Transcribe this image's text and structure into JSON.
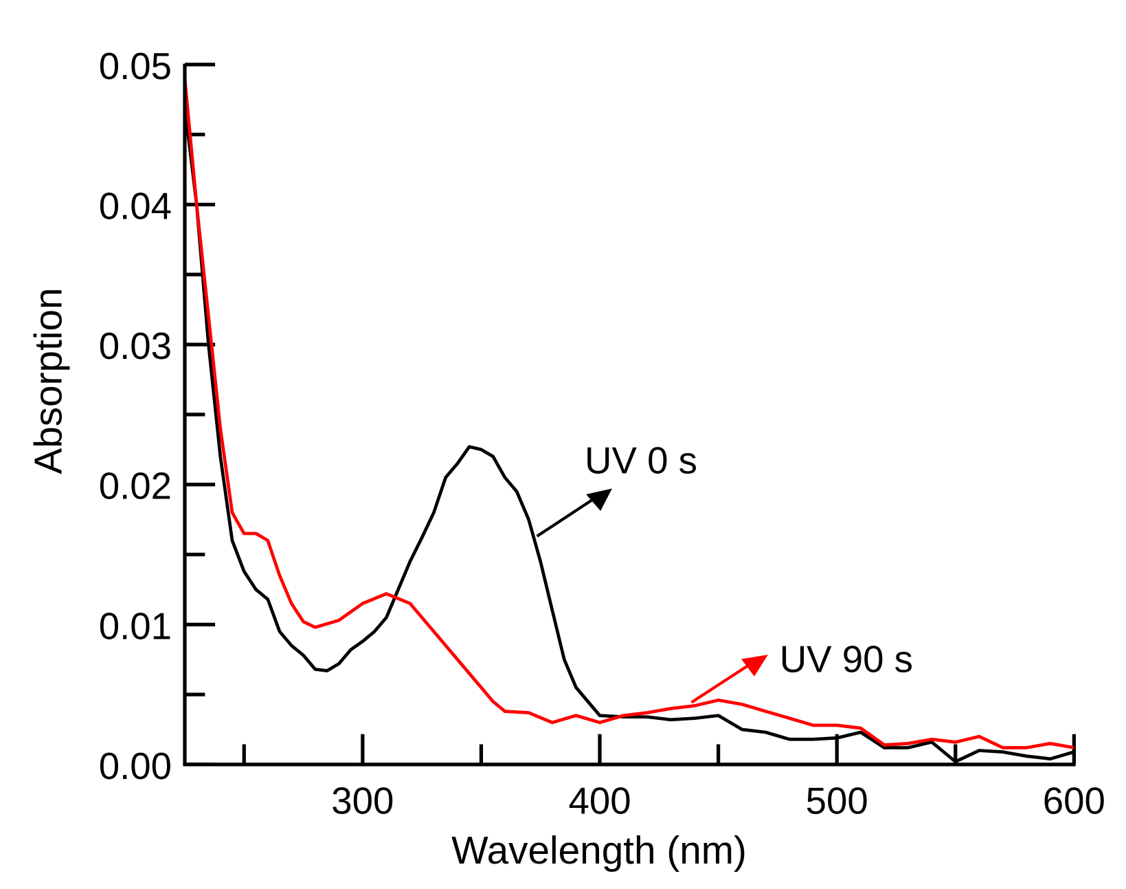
{
  "chart_data": {
    "type": "line",
    "title": "",
    "xlabel": "Wavelength (nm)",
    "ylabel": "Absorption",
    "xlim": [
      225,
      600
    ],
    "ylim": [
      0,
      0.05
    ],
    "xticks": [
      300,
      400,
      500,
      600
    ],
    "xtick_labels": [
      "300",
      "400",
      "500",
      "600"
    ],
    "xminor": [
      250,
      350,
      450,
      550
    ],
    "yticks": [
      0,
      0.01,
      0.02,
      0.03,
      0.04,
      0.05
    ],
    "ytick_labels": [
      "0.00",
      "0.01",
      "0.02",
      "0.03",
      "0.04",
      "0.05"
    ],
    "yminor": [
      0.005,
      0.015,
      0.025,
      0.035,
      0.045
    ],
    "grid": false,
    "series": [
      {
        "name": "UV 0 s",
        "color": "#000000",
        "x": [
          225,
          230,
          235,
          240,
          245,
          250,
          255,
          260,
          265,
          270,
          275,
          280,
          285,
          290,
          295,
          300,
          305,
          310,
          315,
          320,
          325,
          330,
          335,
          340,
          345,
          350,
          355,
          360,
          365,
          370,
          375,
          380,
          385,
          390,
          395,
          400,
          410,
          420,
          430,
          440,
          450,
          460,
          470,
          480,
          490,
          500,
          510,
          520,
          530,
          540,
          550,
          560,
          570,
          580,
          590,
          600
        ],
        "y": [
          0.047,
          0.04,
          0.03,
          0.022,
          0.016,
          0.0138,
          0.0125,
          0.0118,
          0.0095,
          0.0085,
          0.0078,
          0.0068,
          0.0067,
          0.0072,
          0.0082,
          0.0088,
          0.0095,
          0.0105,
          0.0125,
          0.0145,
          0.0162,
          0.018,
          0.0205,
          0.0215,
          0.0227,
          0.0225,
          0.022,
          0.0205,
          0.0195,
          0.0175,
          0.0145,
          0.011,
          0.0075,
          0.0055,
          0.0045,
          0.0035,
          0.0034,
          0.0034,
          0.0032,
          0.0033,
          0.0035,
          0.0025,
          0.0023,
          0.0018,
          0.0018,
          0.0019,
          0.0023,
          0.0012,
          0.0012,
          0.0016,
          0.0002,
          0.001,
          0.0009,
          0.0006,
          0.0004,
          0.0009
        ]
      },
      {
        "name": "UV 90 s",
        "color": "#ff0000",
        "x": [
          225,
          230,
          235,
          240,
          245,
          250,
          255,
          260,
          265,
          270,
          275,
          280,
          290,
          300,
          310,
          320,
          330,
          340,
          350,
          355,
          360,
          370,
          380,
          390,
          400,
          410,
          420,
          430,
          440,
          450,
          460,
          470,
          480,
          490,
          500,
          510,
          520,
          530,
          540,
          550,
          560,
          570,
          580,
          590,
          600
        ],
        "y": [
          0.049,
          0.04,
          0.032,
          0.024,
          0.018,
          0.0165,
          0.0165,
          0.016,
          0.0135,
          0.0115,
          0.0102,
          0.0098,
          0.0103,
          0.0115,
          0.0122,
          0.0115,
          0.0095,
          0.0075,
          0.0055,
          0.0045,
          0.0038,
          0.0037,
          0.003,
          0.0035,
          0.003,
          0.0035,
          0.0037,
          0.004,
          0.0042,
          0.0046,
          0.0043,
          0.0038,
          0.0033,
          0.0028,
          0.0028,
          0.0026,
          0.0014,
          0.0015,
          0.0018,
          0.0016,
          0.002,
          0.0012,
          0.0012,
          0.0015,
          0.0012
        ]
      }
    ],
    "annotations": [
      {
        "text": "UV 0 s",
        "series": "UV 0 s",
        "arrow": true
      },
      {
        "text": "UV 90 s",
        "series": "UV 90 s",
        "arrow": true
      }
    ]
  }
}
